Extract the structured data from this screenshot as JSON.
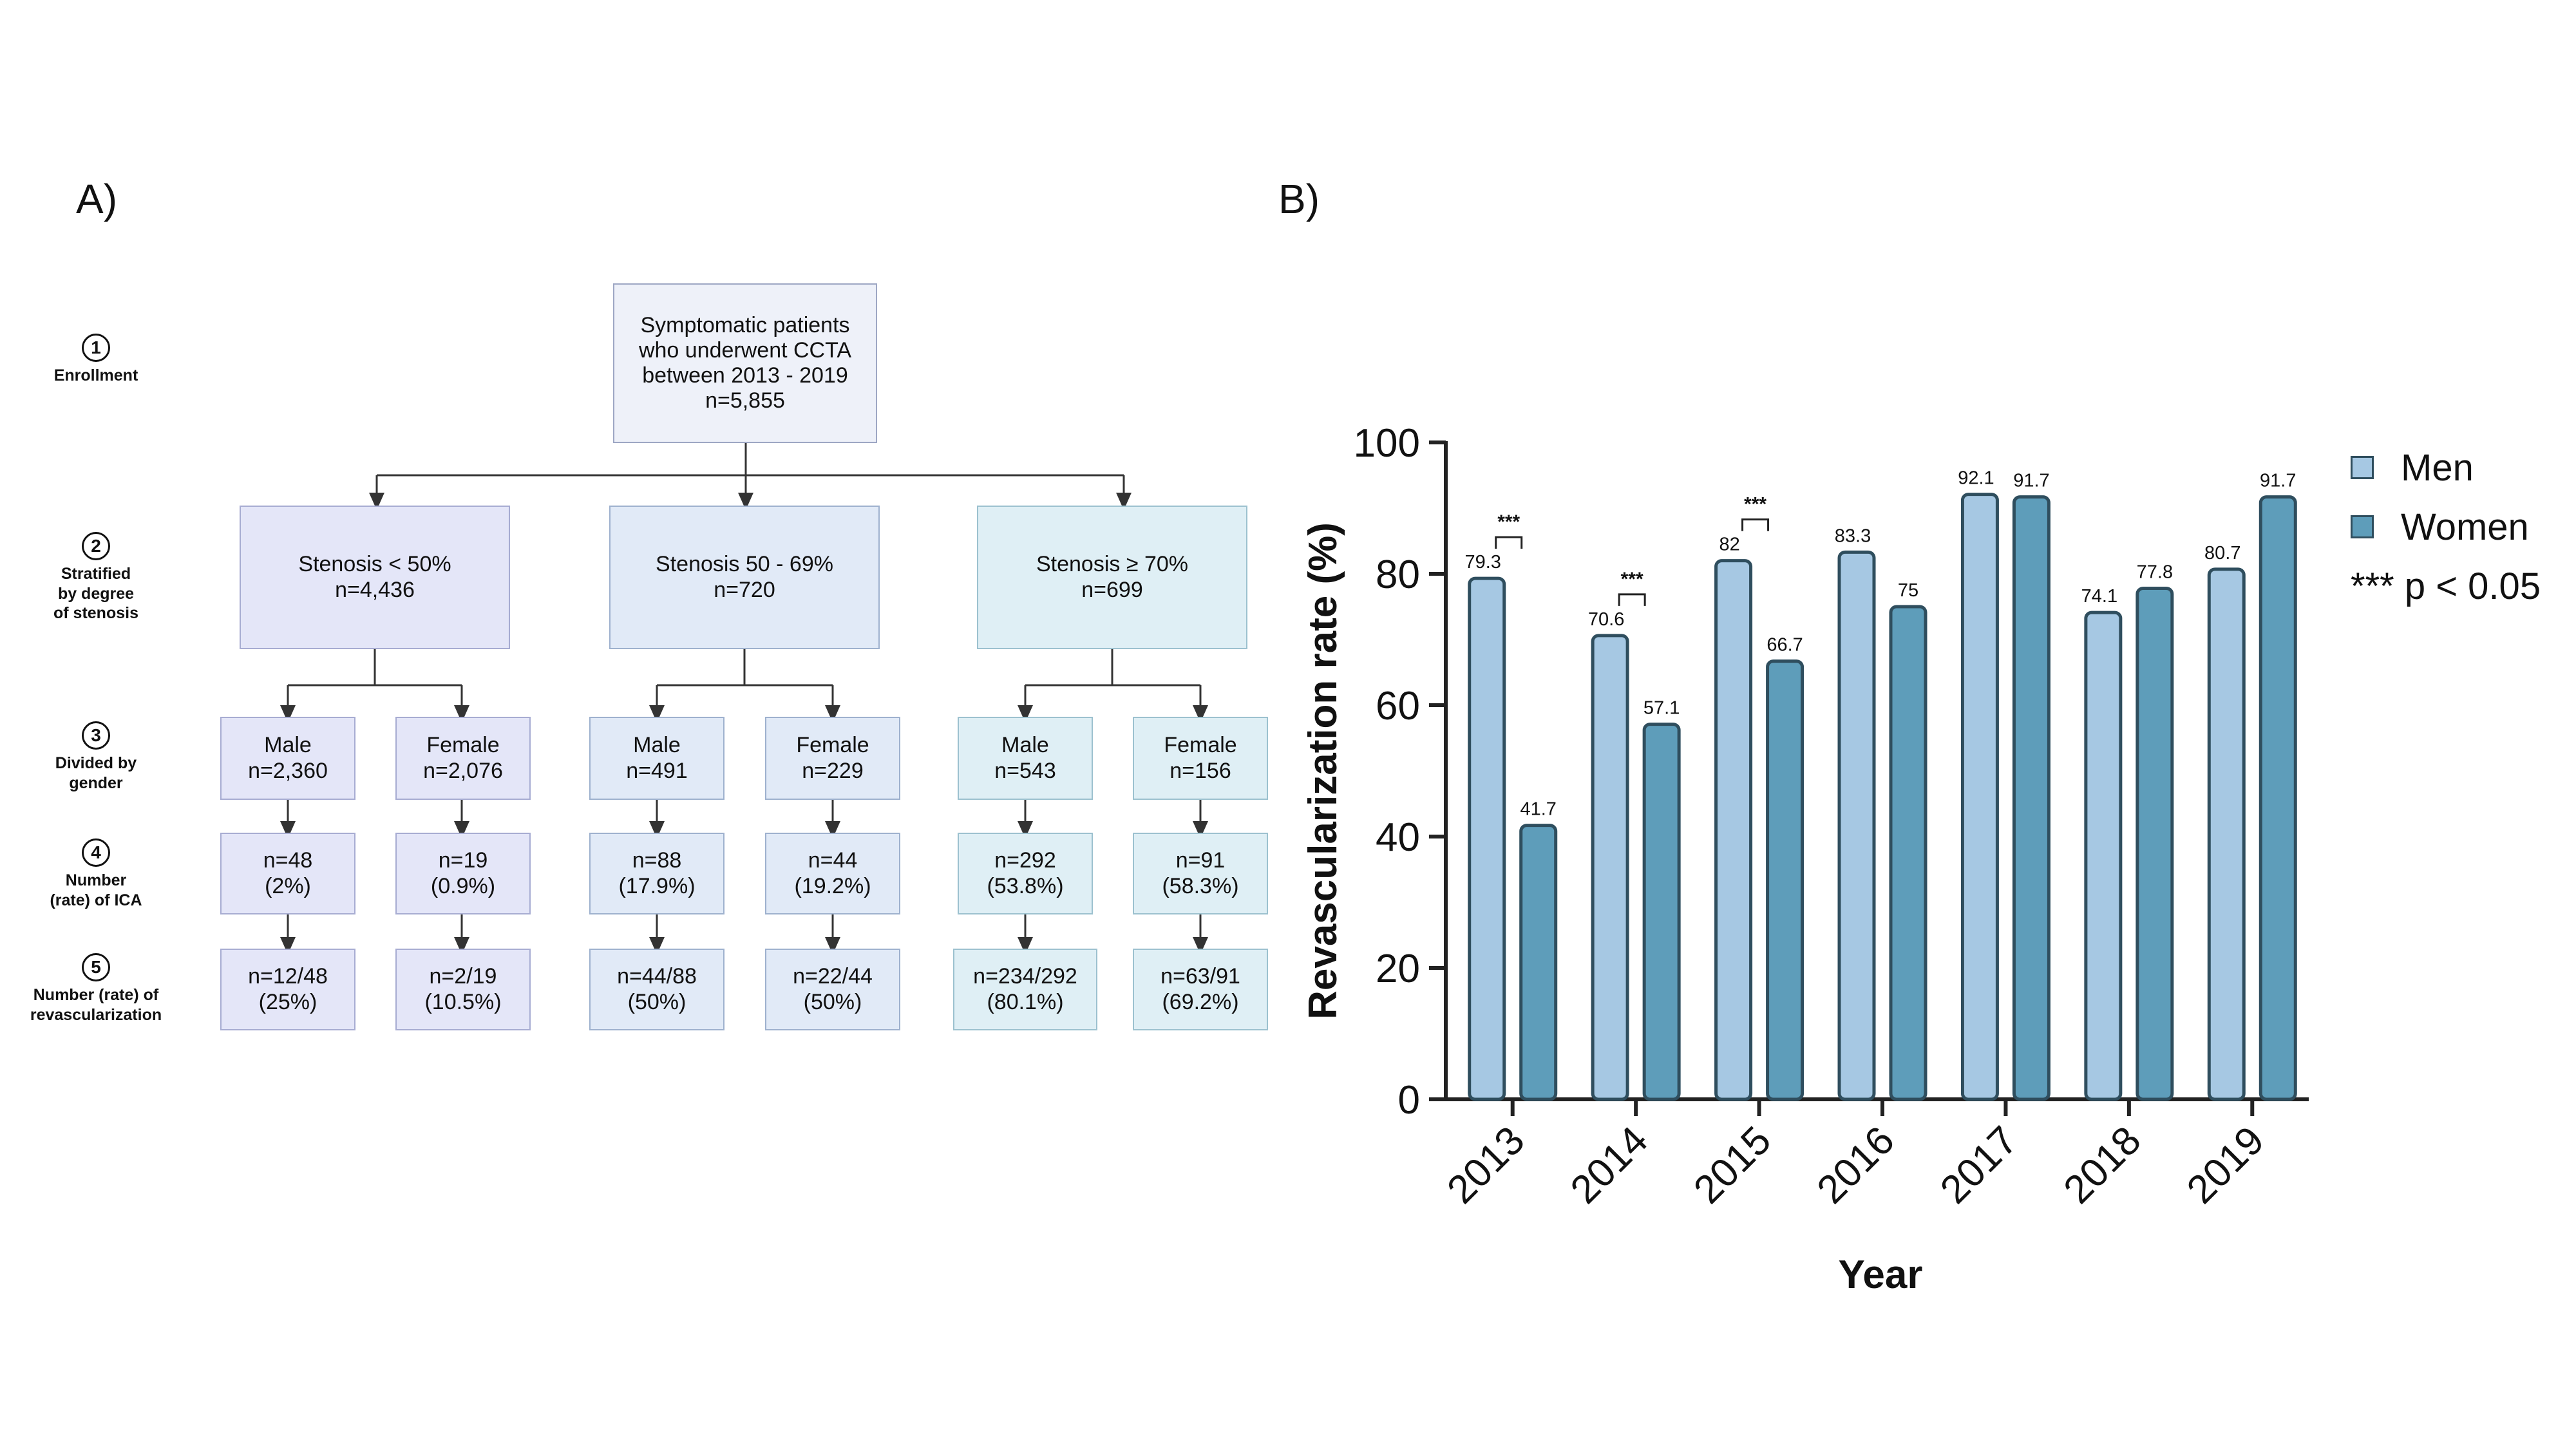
{
  "panels": {
    "a_label": "A)",
    "b_label": "B)"
  },
  "flowchart": {
    "stages": [
      {
        "num": "1",
        "label": "Enrollment"
      },
      {
        "num": "2",
        "label": "Stratified\nby degree\nof stenosis"
      },
      {
        "num": "3",
        "label": "Divided by\ngender"
      },
      {
        "num": "4",
        "label": "Number\n(rate) of ICA"
      },
      {
        "num": "5",
        "label": "Number (rate) of\nrevascularization"
      }
    ],
    "top": {
      "lines": [
        "Symptomatic patients",
        "who underwent CCTA",
        "between 2013 - 2019",
        "n=5,855"
      ]
    },
    "groups": [
      {
        "title": "Stenosis < 50%",
        "n": "n=4,436",
        "male": {
          "label": "Male",
          "n": "n=2,360",
          "ica": "n=48",
          "ica_rate": "(2%)",
          "rev": "n=12/48",
          "rev_rate": "(25%)"
        },
        "female": {
          "label": "Female",
          "n": "n=2,076",
          "ica": "n=19",
          "ica_rate": "(0.9%)",
          "rev": "n=2/19",
          "rev_rate": "(10.5%)"
        }
      },
      {
        "title": "Stenosis 50 - 69%",
        "n": "n=720",
        "male": {
          "label": "Male",
          "n": "n=491",
          "ica": "n=88",
          "ica_rate": "(17.9%)",
          "rev": "n=44/88",
          "rev_rate": "(50%)"
        },
        "female": {
          "label": "Female",
          "n": "n=229",
          "ica": "n=44",
          "ica_rate": "(19.2%)",
          "rev": "n=22/44",
          "rev_rate": "(50%)"
        }
      },
      {
        "title": "Stenosis ≥ 70%",
        "n": "n=699",
        "male": {
          "label": "Male",
          "n": "n=543",
          "ica": "n=292",
          "ica_rate": "(53.8%)",
          "rev": "n=234/292",
          "rev_rate": "(80.1%)"
        },
        "female": {
          "label": "Female",
          "n": "n=156",
          "ica": "n=91",
          "ica_rate": "(58.3%)",
          "rev": "n=63/91",
          "rev_rate": "(69.2%)"
        }
      }
    ]
  },
  "legend": {
    "men": "Men",
    "women": "Women",
    "note": "*** p < 0.05"
  },
  "colors": {
    "men": "#a6c8e3",
    "women": "#5e9dba",
    "stroke": "#2f4e5e"
  },
  "chart_data": {
    "type": "bar",
    "title": "",
    "xlabel": "Year",
    "ylabel": "Revascularization rate (%)",
    "ylim": [
      0,
      100
    ],
    "yticks": [
      0,
      20,
      40,
      60,
      80,
      100
    ],
    "categories": [
      "2013",
      "2014",
      "2015",
      "2016",
      "2017",
      "2018",
      "2019"
    ],
    "series": [
      {
        "name": "Men",
        "values": [
          79.3,
          70.6,
          82,
          83.3,
          92.1,
          74.1,
          80.7
        ],
        "labels": [
          "79.3",
          "70.6",
          "82",
          "83.3",
          "92.1",
          "74.1",
          "80.7"
        ]
      },
      {
        "name": "Women",
        "values": [
          41.7,
          57.1,
          66.7,
          75,
          91.7,
          77.8,
          91.7
        ],
        "labels": [
          "41.7",
          "57.1",
          "66.7",
          "75",
          "91.7",
          "77.8",
          "91.7"
        ]
      }
    ],
    "significance": [
      {
        "category": "2013",
        "mark": "***"
      },
      {
        "category": "2014",
        "mark": "***"
      },
      {
        "category": "2015",
        "mark": "***"
      }
    ]
  }
}
